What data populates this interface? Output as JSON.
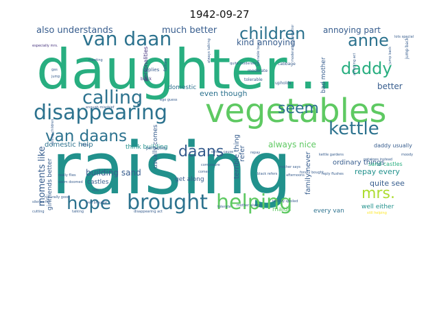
{
  "title": "1942-09-27",
  "colors": {
    "dark_purple": "#46337e",
    "indigo": "#3b528b",
    "steel": "#365c8d",
    "teal_blue": "#2c728e",
    "teal": "#21918c",
    "jade": "#28ae80",
    "green": "#5ec962",
    "lime": "#addc30",
    "yellow": "#fde725"
  },
  "words": [
    {
      "text": "raising"
    },
    {
      "text": "daughter..."
    },
    {
      "text": "vegetables"
    },
    {
      "text": "disappearing"
    },
    {
      "text": "brought"
    },
    {
      "text": "helping"
    },
    {
      "text": "children"
    },
    {
      "text": "van daan"
    },
    {
      "text": "calling"
    },
    {
      "text": "kettle"
    },
    {
      "text": "van daans"
    },
    {
      "text": "daddy"
    },
    {
      "text": "hope"
    },
    {
      "text": "anne"
    },
    {
      "text": "seem"
    },
    {
      "text": "daans"
    },
    {
      "text": "mrs."
    },
    {
      "text": "much better"
    },
    {
      "text": "also understands"
    },
    {
      "text": "annoying part"
    },
    {
      "text": "even though"
    },
    {
      "text": "annoying"
    },
    {
      "text": "moments like"
    },
    {
      "text": "always nice"
    },
    {
      "text": "better"
    },
    {
      "text": "kind"
    },
    {
      "text": "building sand"
    },
    {
      "text": "repay every"
    },
    {
      "text": "quite see"
    },
    {
      "text": "ordinary things"
    },
    {
      "text": "domestic help"
    },
    {
      "text": "think building"
    },
    {
      "text": "get along"
    },
    {
      "text": "terrible thing"
    },
    {
      "text": "well either"
    },
    {
      "text": "castles"
    },
    {
      "text": "daddy usually"
    },
    {
      "text": "girlfriends better"
    },
    {
      "text": "sand castles"
    },
    {
      "text": "every van"
    },
    {
      "text": "bad mother"
    },
    {
      "text": "family never"
    },
    {
      "text": "usually comes"
    },
    {
      "text": "domestic"
    },
    {
      "text": "refer"
    },
    {
      "text": "maids"
    },
    {
      "text": "personalities"
    },
    {
      "text": "replies"
    },
    {
      "text": "black"
    },
    {
      "text": "meeting"
    },
    {
      "text": "perfection"
    },
    {
      "text": "moderate"
    },
    {
      "text": "tolerable"
    },
    {
      "text": "upholds"
    },
    {
      "text": "cabbage"
    },
    {
      "text": "failure"
    },
    {
      "text": "jump"
    },
    {
      "text": "repay"
    },
    {
      "text": "moody"
    },
    {
      "text": "jump back"
    },
    {
      "text": "especially mrs."
    },
    {
      "text": "lots special"
    },
    {
      "text": "always talking"
    },
    {
      "text": "really flies"
    },
    {
      "text": "seem doomed"
    },
    {
      "text": "naturally good"
    },
    {
      "text": "well brought"
    },
    {
      "text": "mother always"
    },
    {
      "text": "terribly spoiled"
    },
    {
      "text": "still helping"
    },
    {
      "text": "disappearing act"
    },
    {
      "text": "black refers"
    },
    {
      "text": "mother says"
    },
    {
      "text": "reply flushes"
    },
    {
      "text": "others cause"
    },
    {
      "text": "ego guess"
    },
    {
      "text": "enough mischief"
    },
    {
      "text": "quite moderate"
    },
    {
      "text": "tolerable bears"
    },
    {
      "text": "moderate expectations"
    },
    {
      "text": "annoying act"
    },
    {
      "text": "fondly bought"
    },
    {
      "text": "potatoes instead"
    },
    {
      "text": "composure"
    },
    {
      "text": "flies"
    },
    {
      "text": "kettle gardens"
    },
    {
      "text": "afternoons"
    },
    {
      "text": "talking"
    },
    {
      "text": "silence fell"
    },
    {
      "text": "cutting"
    },
    {
      "text": "raising children"
    },
    {
      "text": "lots"
    },
    {
      "text": "tolerate"
    },
    {
      "text": "jump back"
    },
    {
      "text": "gas"
    },
    {
      "text": "comes"
    }
  ]
}
